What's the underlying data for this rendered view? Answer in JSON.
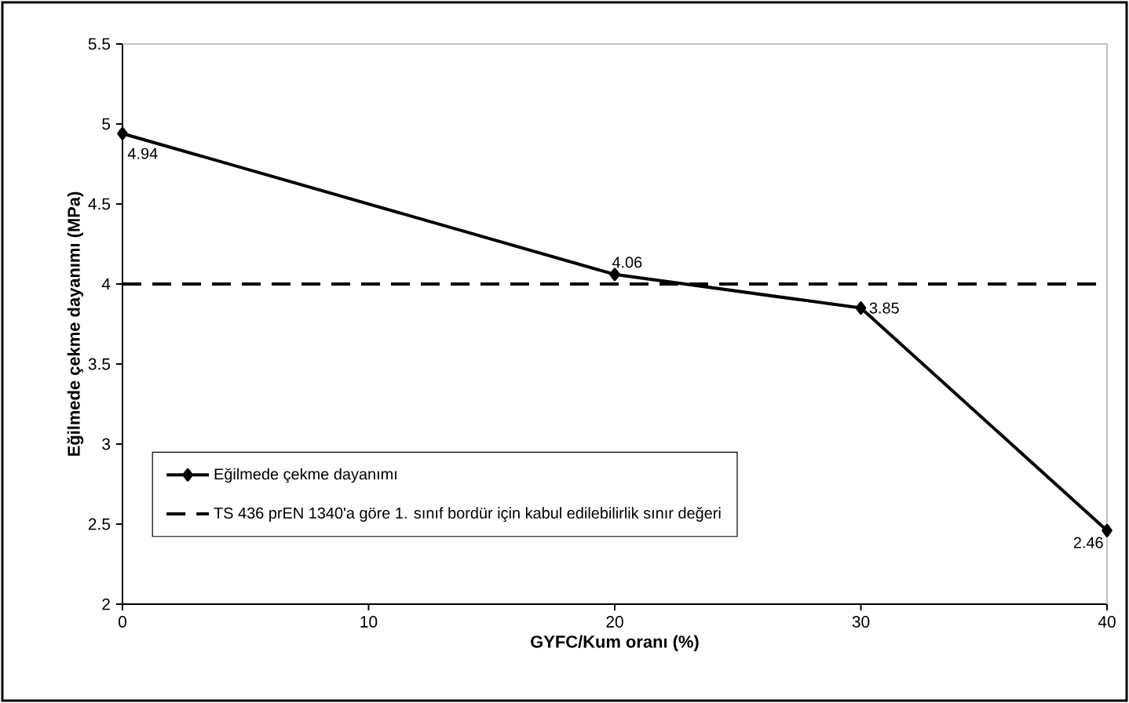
{
  "chart_data": {
    "type": "line",
    "xlabel": "GYFC/Kum oranı (%)",
    "ylabel": "Eğilmede çekme dayanımı (MPa)",
    "xlim": [
      0,
      40
    ],
    "xticks": [
      0,
      10,
      20,
      30,
      40
    ],
    "ylim": [
      2,
      5.5
    ],
    "yticks": [
      2,
      2.5,
      3,
      3.5,
      4,
      4.5,
      5,
      5.5
    ],
    "grid": false,
    "legend": "bottom left",
    "series": [
      {
        "name": "Eğilmede çekme dayanımı",
        "color": "#000000",
        "x": [
          0,
          20,
          30,
          40
        ],
        "values": [
          4.94,
          4.06,
          3.85,
          2.46
        ],
        "value_labels": [
          "4.94",
          "4.06",
          "3.85",
          "2.46"
        ],
        "marker": "diamond",
        "line_style": "solid"
      },
      {
        "name": "TS 436 prEN 1340'a göre 1. sınıf bordür için kabul edilebilirlik sınır değeri",
        "color": "#000000",
        "x": [
          0,
          40
        ],
        "values": [
          4,
          4
        ],
        "marker": "none",
        "line_style": "dashed"
      }
    ]
  }
}
